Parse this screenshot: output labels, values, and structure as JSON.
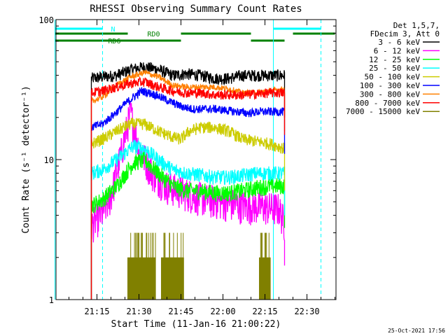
{
  "chart_data": {
    "type": "line",
    "title": "RHESSI Observing Summary Count Rates",
    "xlabel": "Start Time (11-Jan-16 21:00:22)",
    "ylabel": "Count Rate (s⁻¹ detector⁻¹)",
    "ylog": true,
    "ylim": [
      1,
      100
    ],
    "xlim_minutes": [
      21.0,
      22.4
    ],
    "x_ticks": [
      "21:15",
      "21:30",
      "21:45",
      "22:00",
      "22:15",
      "22:30"
    ],
    "y_ticks": [
      "1",
      "10",
      "100"
    ],
    "legend_header": [
      "Det 1,5,7,",
      "FDecim 3, Att 0"
    ],
    "legend_position": "right",
    "data_start": "21:13",
    "data_end": "22:22",
    "series": [
      {
        "name": "3 - 6 keV",
        "color": "#000000",
        "keys": [
          [
            "21:13",
            38
          ],
          [
            "21:17",
            39
          ],
          [
            "21:22",
            40
          ],
          [
            "21:27",
            44
          ],
          [
            "21:32",
            46
          ],
          [
            "21:37",
            44
          ],
          [
            "21:42",
            40
          ],
          [
            "21:47",
            41
          ],
          [
            "21:52",
            40
          ],
          [
            "21:57",
            38
          ],
          [
            "22:02",
            38
          ],
          [
            "22:07",
            40
          ],
          [
            "22:12",
            40
          ],
          [
            "22:17",
            40
          ],
          [
            "22:22",
            40
          ]
        ],
        "noise": 0.05
      },
      {
        "name": "6 - 12 keV",
        "color": "#ff00ff",
        "keys": [
          [
            "21:13",
            3.4
          ],
          [
            "21:17",
            4.2
          ],
          [
            "21:20",
            5.5
          ],
          [
            "21:24",
            12
          ],
          [
            "21:27",
            22
          ],
          [
            "21:30",
            12
          ],
          [
            "21:35",
            8
          ],
          [
            "21:40",
            6.5
          ],
          [
            "21:45",
            6
          ],
          [
            "21:50",
            5.5
          ],
          [
            "21:55",
            5.2
          ],
          [
            "22:00",
            5
          ],
          [
            "22:05",
            4.8
          ],
          [
            "22:10",
            4.7
          ],
          [
            "22:15",
            4.6
          ],
          [
            "22:20",
            4.5
          ],
          [
            "22:22",
            3.5
          ]
        ],
        "noise": 0.14
      },
      {
        "name": "12 - 25 keV",
        "color": "#00ff00",
        "keys": [
          [
            "21:13",
            4.7
          ],
          [
            "21:17",
            5.2
          ],
          [
            "21:22",
            6.5
          ],
          [
            "21:28",
            9.5
          ],
          [
            "21:32",
            10
          ],
          [
            "21:37",
            8
          ],
          [
            "21:42",
            6.5
          ],
          [
            "21:47",
            6
          ],
          [
            "21:52",
            6
          ],
          [
            "21:57",
            5.8
          ],
          [
            "22:02",
            5.8
          ],
          [
            "22:07",
            6
          ],
          [
            "22:12",
            6.3
          ],
          [
            "22:17",
            6.5
          ],
          [
            "22:22",
            6.5
          ]
        ],
        "noise": 0.07
      },
      {
        "name": "25 - 50 keV",
        "color": "#00ffff",
        "keys": [
          [
            "21:13",
            8
          ],
          [
            "21:17",
            8.5
          ],
          [
            "21:22",
            10
          ],
          [
            "21:28",
            12.5
          ],
          [
            "21:32",
            12
          ],
          [
            "21:37",
            10
          ],
          [
            "21:42",
            8.5
          ],
          [
            "21:47",
            8
          ],
          [
            "21:52",
            7.8
          ],
          [
            "21:57",
            7.5
          ],
          [
            "22:02",
            7.5
          ],
          [
            "22:07",
            7.7
          ],
          [
            "22:12",
            8
          ],
          [
            "22:17",
            8
          ],
          [
            "22:22",
            8
          ]
        ],
        "noise": 0.06
      },
      {
        "name": "50 - 100 keV",
        "color": "#cccc00",
        "keys": [
          [
            "21:13",
            13
          ],
          [
            "21:17",
            14
          ],
          [
            "21:22",
            16
          ],
          [
            "21:27",
            18
          ],
          [
            "21:32",
            18
          ],
          [
            "21:37",
            16
          ],
          [
            "21:42",
            14.5
          ],
          [
            "21:45",
            14
          ],
          [
            "21:48",
            16
          ],
          [
            "21:52",
            17
          ],
          [
            "21:57",
            17
          ],
          [
            "22:02",
            16
          ],
          [
            "22:07",
            14
          ],
          [
            "22:12",
            13.5
          ],
          [
            "22:17",
            13
          ],
          [
            "22:22",
            12
          ]
        ],
        "noise": 0.05
      },
      {
        "name": "100 - 300 keV",
        "color": "#0000ff",
        "keys": [
          [
            "21:13",
            17
          ],
          [
            "21:17",
            18
          ],
          [
            "21:21",
            21
          ],
          [
            "21:26",
            26
          ],
          [
            "21:31",
            31
          ],
          [
            "21:36",
            29
          ],
          [
            "21:41",
            26
          ],
          [
            "21:45",
            24
          ],
          [
            "21:49",
            23
          ],
          [
            "21:53",
            23
          ],
          [
            "21:57",
            23
          ],
          [
            "22:01",
            22.5
          ],
          [
            "22:05",
            22
          ],
          [
            "22:09",
            21.5
          ],
          [
            "22:13",
            22
          ],
          [
            "22:17",
            22
          ],
          [
            "22:22",
            22
          ]
        ],
        "noise": 0.035
      },
      {
        "name": "300 - 800 keV",
        "color": "#ff8000",
        "keys": [
          [
            "21:13",
            26
          ],
          [
            "21:17",
            28
          ],
          [
            "21:22",
            34
          ],
          [
            "21:27",
            39
          ],
          [
            "21:32",
            42
          ],
          [
            "21:37",
            39
          ],
          [
            "21:42",
            34
          ],
          [
            "21:47",
            33
          ],
          [
            "21:52",
            33
          ],
          [
            "21:57",
            33
          ],
          [
            "22:02",
            32
          ],
          [
            "22:07",
            30
          ],
          [
            "22:12",
            30
          ],
          [
            "22:17",
            31
          ],
          [
            "22:22",
            32
          ]
        ],
        "noise": 0.025
      },
      {
        "name": "800 - 7000 keV",
        "color": "#ff0000",
        "keys": [
          [
            "21:13",
            30
          ],
          [
            "21:17",
            31
          ],
          [
            "21:22",
            33
          ],
          [
            "21:27",
            35
          ],
          [
            "21:32",
            36
          ],
          [
            "21:37",
            33
          ],
          [
            "21:42",
            31
          ],
          [
            "21:47",
            30
          ],
          [
            "21:52",
            30
          ],
          [
            "21:57",
            29
          ],
          [
            "22:02",
            29
          ],
          [
            "22:07",
            29
          ],
          [
            "22:12",
            29.5
          ],
          [
            "22:17",
            30
          ],
          [
            "22:22",
            30
          ]
        ],
        "noise": 0.04
      },
      {
        "name": "7000 - 15000 keV",
        "color": "#808000",
        "keys": [
          [
            "21:26",
            1
          ],
          [
            "21:28",
            2
          ],
          [
            "21:32",
            2
          ],
          [
            "21:36",
            2
          ],
          [
            "21:40",
            2
          ],
          [
            "21:44",
            1.8
          ],
          [
            "21:46",
            1
          ],
          [
            "22:12",
            1
          ],
          [
            "22:15",
            2
          ],
          [
            "22:18",
            1
          ]
        ],
        "noise": 0.0
      }
    ],
    "flags": [
      {
        "label": "N",
        "color": "#00ffff",
        "segments": [
          [
            "21:00",
            "21:17"
          ],
          [
            "22:18",
            "22:35"
          ]
        ]
      },
      {
        "label": "RD0",
        "color": "#008000",
        "segments": [
          [
            "21:00",
            "21:26"
          ],
          [
            "21:45",
            "22:10"
          ],
          [
            "22:25",
            "22:40"
          ]
        ]
      },
      {
        "label": "RD6",
        "color": "#008000",
        "segments": [
          [
            "21:00",
            "21:45"
          ],
          [
            "22:10",
            "22:22"
          ]
        ]
      }
    ],
    "night_lines": [
      {
        "time": "21:00",
        "color": "#00ffff",
        "style": "solid"
      },
      {
        "time": "21:17",
        "color": "#00ffff",
        "style": "dashed"
      },
      {
        "time": "22:18",
        "color": "#00ffff",
        "style": "solid"
      },
      {
        "time": "22:35",
        "color": "#00ffff",
        "style": "dashed"
      }
    ]
  },
  "footer": {
    "timestamp": "25-Oct-2021 17:56"
  }
}
